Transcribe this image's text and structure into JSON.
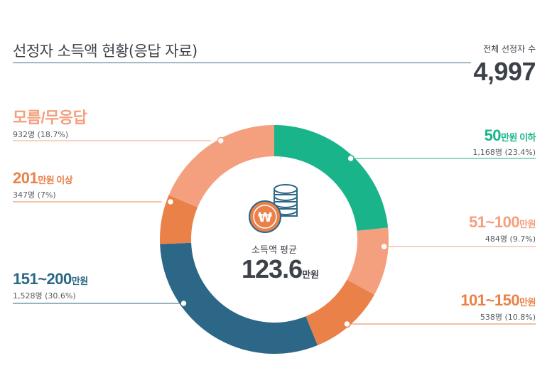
{
  "header": {
    "title": "선정자 소득액 현황(응답 자료)",
    "total_label": "전체 선정자 수",
    "total_value": "4,997"
  },
  "center": {
    "caption": "소득액 평균",
    "value": "123.6",
    "unit": "만원",
    "icon": "won-coin-stack-icon"
  },
  "chart_data": {
    "type": "pie",
    "style": "donut",
    "start": "top, clockwise",
    "slices": [
      {
        "label": "50만원 이하",
        "main": "50",
        "unit": "만원 이하",
        "count": "1,168명 (23.4%)",
        "value": 23.4,
        "color": "#19b48a"
      },
      {
        "label": "51~100만원",
        "main": "51~100",
        "unit": "만원",
        "count": "484명 (9.7%)",
        "value": 9.7,
        "color": "#f4a07f"
      },
      {
        "label": "101~150만원",
        "main": "101~150",
        "unit": "만원",
        "count": "538명 (10.8%)",
        "value": 10.8,
        "color": "#ea8149"
      },
      {
        "label": "151~200만원",
        "main": "151~200",
        "unit": "만원",
        "count": "1,528명 (30.6%)",
        "value": 30.6,
        "color": "#2c6788"
      },
      {
        "label": "201만원 이상",
        "main": "201",
        "unit": "만원 이상",
        "count": "347명 (7%)",
        "value": 7.0,
        "color": "#ea8149"
      },
      {
        "label": "모름/무응답",
        "main": "모름/무응답",
        "unit": "",
        "count": "932명 (18.7%)",
        "value": 18.7,
        "color": "#f4a07f"
      }
    ]
  }
}
